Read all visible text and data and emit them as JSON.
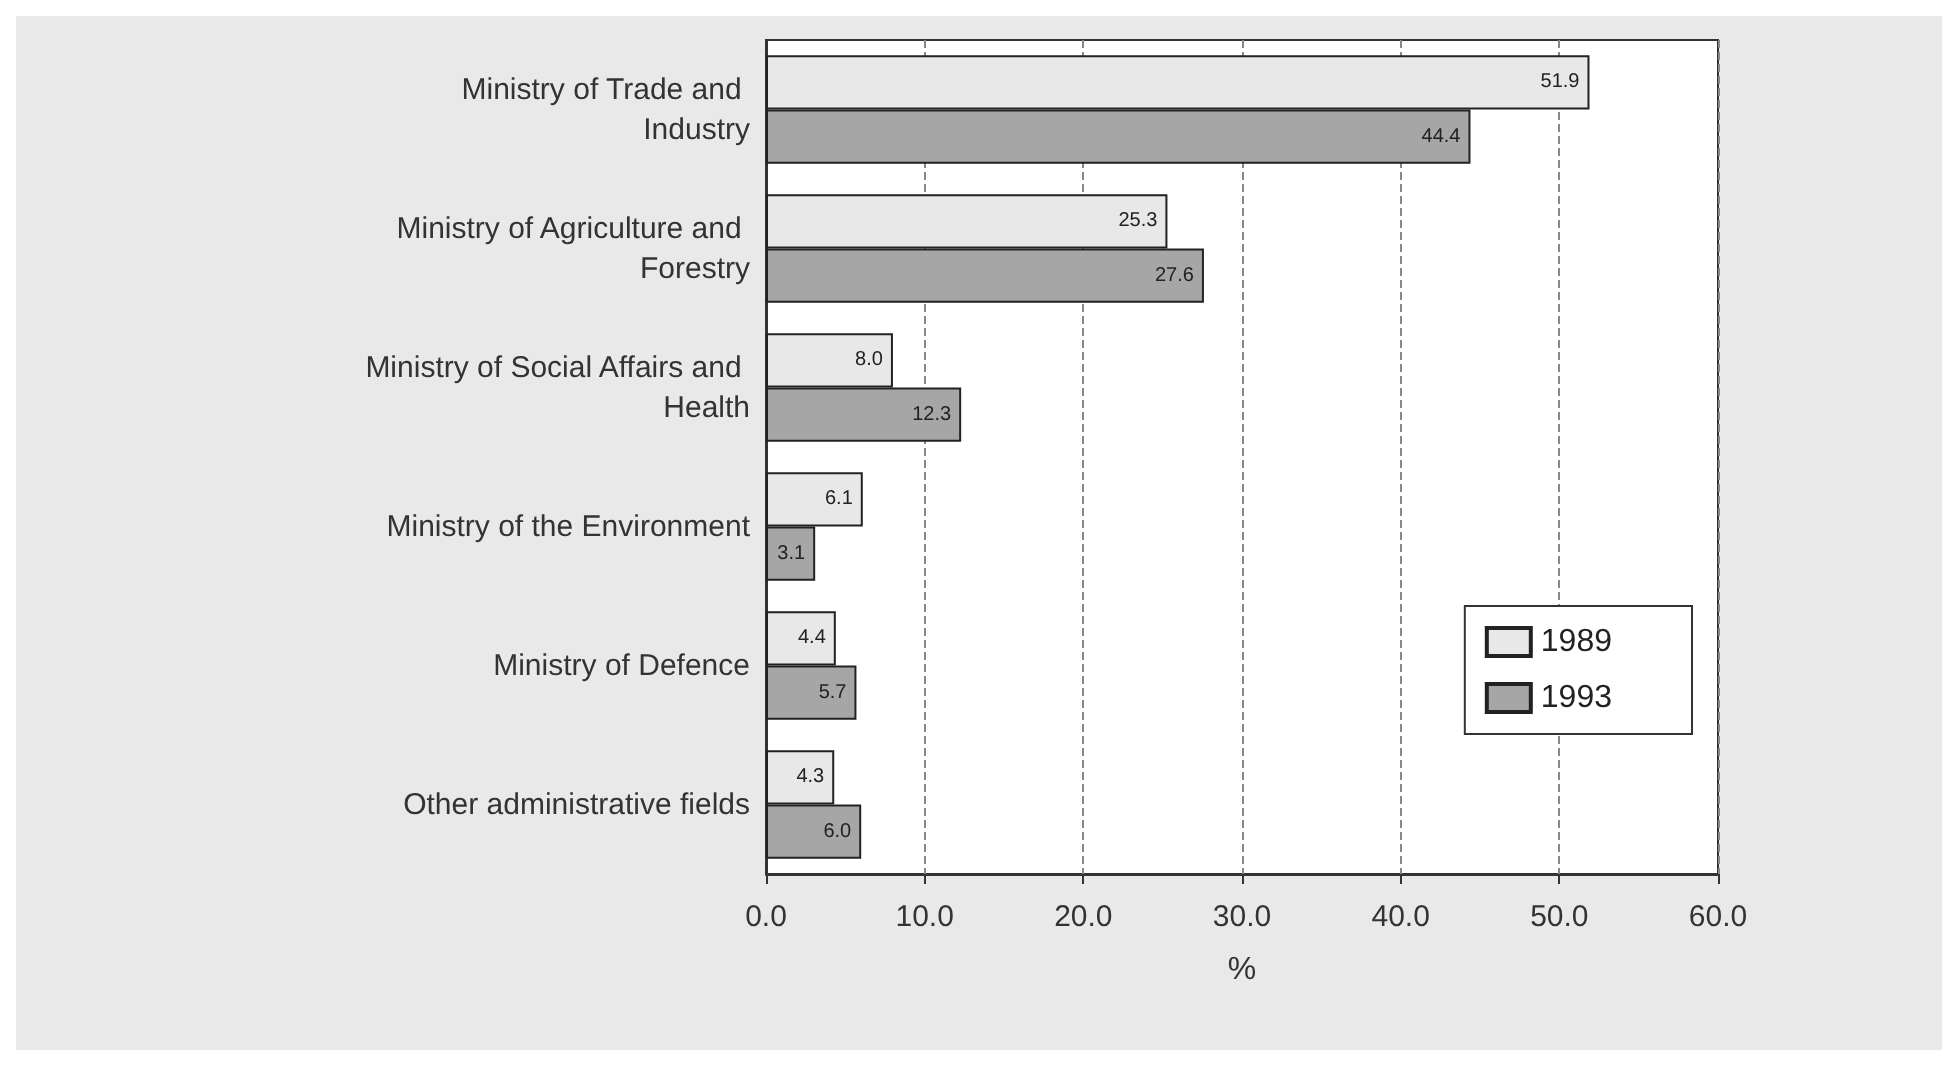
{
  "chart_data": {
    "type": "bar",
    "orientation": "horizontal",
    "xlabel": "%",
    "categories": [
      "Ministry of Trade and Industry",
      "Ministry of Agriculture and Forestry",
      "Ministry of Social Affairs and Health",
      "Ministry of the Environment",
      "Ministry of Defence",
      "Other administrative fields"
    ],
    "series": [
      {
        "name": "1989",
        "color": "#e8e8e8",
        "values": [
          51.9,
          25.3,
          8.0,
          6.1,
          4.4,
          4.3
        ],
        "value_labels": [
          "51.9",
          "25.3",
          "8.0",
          "6.1",
          "4.4",
          "4.3"
        ]
      },
      {
        "name": "1993",
        "color": "#a6a6a6",
        "values": [
          44.4,
          27.6,
          12.3,
          3.1,
          5.7,
          6.0
        ],
        "value_labels": [
          "44.4",
          "27.6",
          "12.3",
          "3.1",
          "5.7",
          "6.0"
        ]
      }
    ],
    "xlim": [
      0,
      60
    ],
    "xticks": [
      {
        "value": 0,
        "label": "0.0"
      },
      {
        "value": 10,
        "label": "10.0"
      },
      {
        "value": 20,
        "label": "20.0"
      },
      {
        "value": 30,
        "label": "30.0"
      },
      {
        "value": 40,
        "label": "40.0"
      },
      {
        "value": 50,
        "label": "50.0"
      },
      {
        "value": 60,
        "label": "60.0"
      }
    ],
    "grid": "x",
    "legend": "bottom right"
  }
}
